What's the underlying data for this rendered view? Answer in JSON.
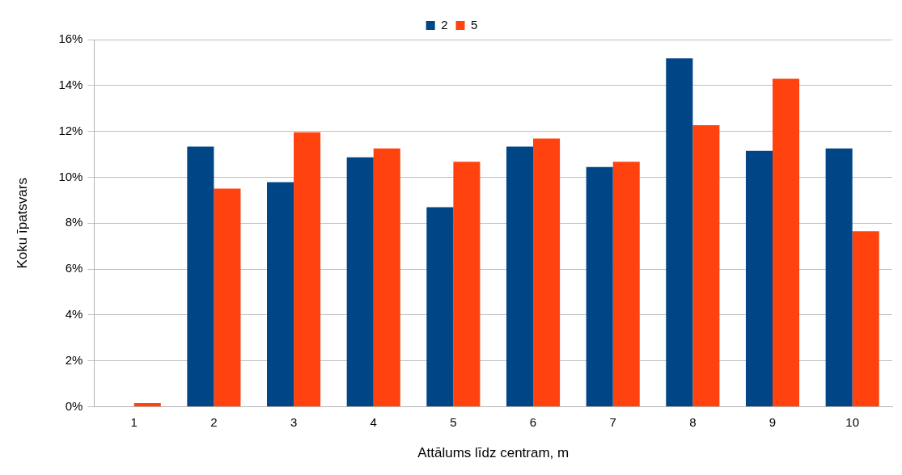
{
  "chart_data": {
    "type": "bar",
    "xlabel": "Attālums līdz centram, m",
    "ylabel": "Koku īpatsvars",
    "categories": [
      "1",
      "2",
      "3",
      "4",
      "5",
      "6",
      "7",
      "8",
      "9",
      "10"
    ],
    "series": [
      {
        "name": "2",
        "color": "#004586",
        "values": [
          0,
          11.34,
          9.79,
          10.87,
          8.7,
          11.34,
          10.45,
          15.18,
          11.15,
          11.26
        ]
      },
      {
        "name": "5",
        "color": "#ff420e",
        "values": [
          0.16,
          9.51,
          11.96,
          11.26,
          10.68,
          11.69,
          10.68,
          12.27,
          14.29,
          7.65
        ]
      }
    ],
    "ylim": [
      0,
      16
    ],
    "yticks": [
      {
        "value": 0,
        "label": "0%"
      },
      {
        "value": 2,
        "label": "2%"
      },
      {
        "value": 4,
        "label": "4%"
      },
      {
        "value": 6,
        "label": "6%"
      },
      {
        "value": 8,
        "label": "8%"
      },
      {
        "value": 10,
        "label": "10%"
      },
      {
        "value": 12,
        "label": "12%"
      },
      {
        "value": 14,
        "label": "14%"
      },
      {
        "value": 16,
        "label": "16%"
      }
    ],
    "grid": "y",
    "legend": "top"
  }
}
